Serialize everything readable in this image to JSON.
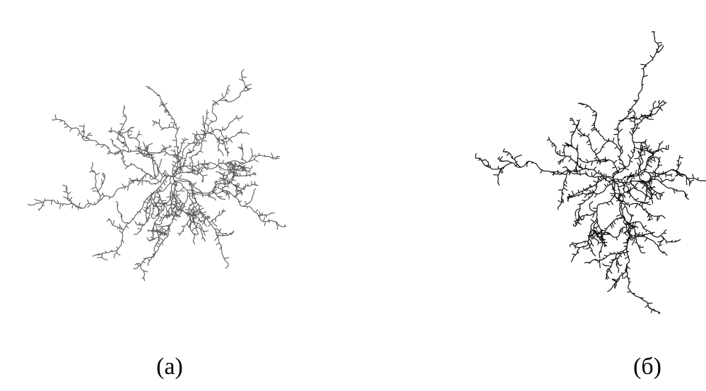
{
  "panels": [
    {
      "label": "(a)"
    },
    {
      "label": "(б)"
    }
  ]
}
